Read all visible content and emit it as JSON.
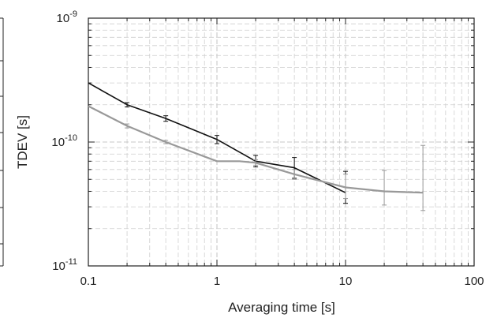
{
  "chart_data": {
    "type": "line",
    "xscale": "log",
    "yscale": "log",
    "xlim": [
      0.1,
      100
    ],
    "ylim": [
      1e-11,
      1e-09
    ],
    "grid": true,
    "xlabel": "Averaging time [s]",
    "ylabel": "TDEV [s]",
    "x_ticks": [
      {
        "value": 0.1,
        "label": "0.1"
      },
      {
        "value": 1,
        "label": "1"
      },
      {
        "value": 10,
        "label": "10"
      },
      {
        "value": 100,
        "label": "100"
      }
    ],
    "y_ticks": [
      {
        "value": 1e-11,
        "base": "10",
        "exp": "-11"
      },
      {
        "value": 1e-10,
        "base": "10",
        "exp": "-10"
      },
      {
        "value": 1e-09,
        "base": "10",
        "exp": "-9"
      }
    ],
    "series": [
      {
        "color": "#111111",
        "points": [
          {
            "x": 0.1,
            "y": 3e-10
          },
          {
            "x": 0.2,
            "y": 2e-10,
            "err": [
              1.92e-10,
              2.08e-10
            ]
          },
          {
            "x": 0.4,
            "y": 1.55e-10,
            "err": [
              1.47e-10,
              1.63e-10
            ]
          },
          {
            "x": 1,
            "y": 1.05e-10,
            "err": [
              9.7e-11,
              1.13e-10
            ]
          },
          {
            "x": 2,
            "y": 7e-11,
            "err": [
              6.3e-11,
              7.8e-11
            ]
          },
          {
            "x": 4,
            "y": 6.2e-11,
            "err": [
              5.1e-11,
              7.5e-11
            ]
          },
          {
            "x": 10,
            "y": 3.9e-11,
            "err": [
              3.2e-11,
              5.8e-11
            ]
          }
        ]
      },
      {
        "color": "#999999",
        "points": [
          {
            "x": 0.1,
            "y": 1.95e-10
          },
          {
            "x": 0.2,
            "y": 1.35e-10,
            "err": [
              1.3e-10,
              1.4e-10
            ]
          },
          {
            "x": 0.4,
            "y": 1e-10,
            "err": [
              9.7e-11,
              1.03e-10
            ]
          },
          {
            "x": 1,
            "y": 7e-11
          },
          {
            "x": 1.5,
            "y": 7e-11
          },
          {
            "x": 2,
            "y": 6.8e-11,
            "err": [
              6.5e-11,
              7.2e-11
            ]
          },
          {
            "x": 4,
            "y": 5.5e-11,
            "err": [
              5e-11,
              6e-11
            ]
          },
          {
            "x": 10,
            "y": 4.3e-11,
            "err": [
              3.5e-11,
              5.5e-11
            ]
          },
          {
            "x": 20,
            "y": 4e-11,
            "err": [
              3.1e-11,
              5.9e-11
            ]
          },
          {
            "x": 40,
            "y": 3.9e-11,
            "err": [
              2.8e-11,
              9.4e-11
            ]
          }
        ]
      }
    ]
  }
}
